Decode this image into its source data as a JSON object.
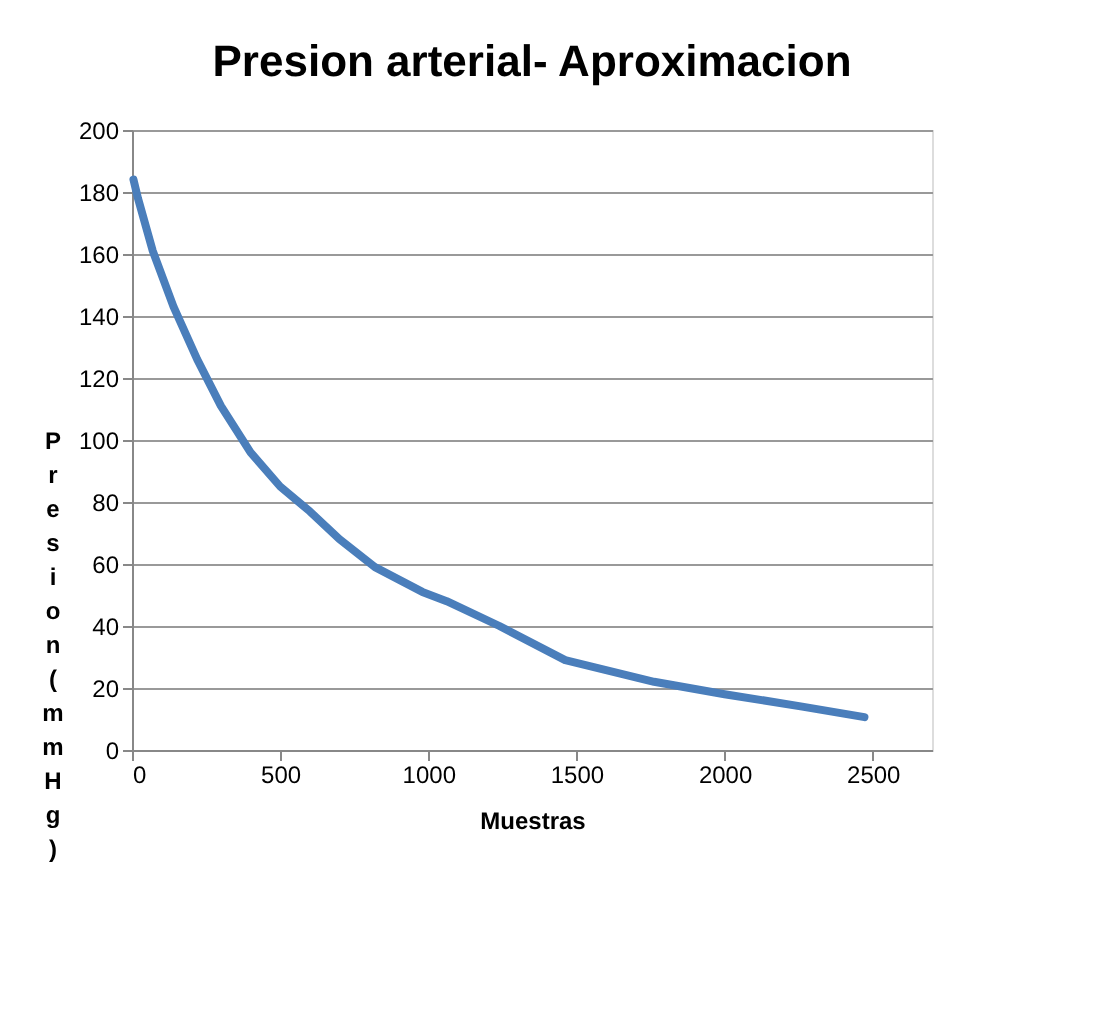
{
  "chart_data": {
    "type": "line",
    "title": "Presion arterial- Aproximacion",
    "xlabel": "Muestras",
    "ylabel": "Presion (mmHg)",
    "x": [
      5,
      20,
      70,
      140,
      220,
      300,
      400,
      500,
      600,
      700,
      820,
      980,
      1062,
      1240,
      1462,
      1762,
      2000,
      2262,
      2472
    ],
    "series": [
      {
        "color": "#4a7ebb",
        "values": [
          184,
          178,
          161,
          143,
          126,
          111,
          96,
          85,
          77,
          68,
          59,
          51,
          48,
          40,
          29,
          22,
          18,
          14,
          10.6
        ]
      }
    ],
    "xlim": [
      0,
      2700
    ],
    "xticks": [
      0,
      500,
      1000,
      1500,
      2000,
      2500
    ],
    "ylim": [
      0,
      200
    ],
    "yticks": [
      0,
      20,
      40,
      60,
      80,
      100,
      120,
      140,
      160,
      180,
      200
    ],
    "grid": "y",
    "marker": "none",
    "line_style": "solid"
  }
}
